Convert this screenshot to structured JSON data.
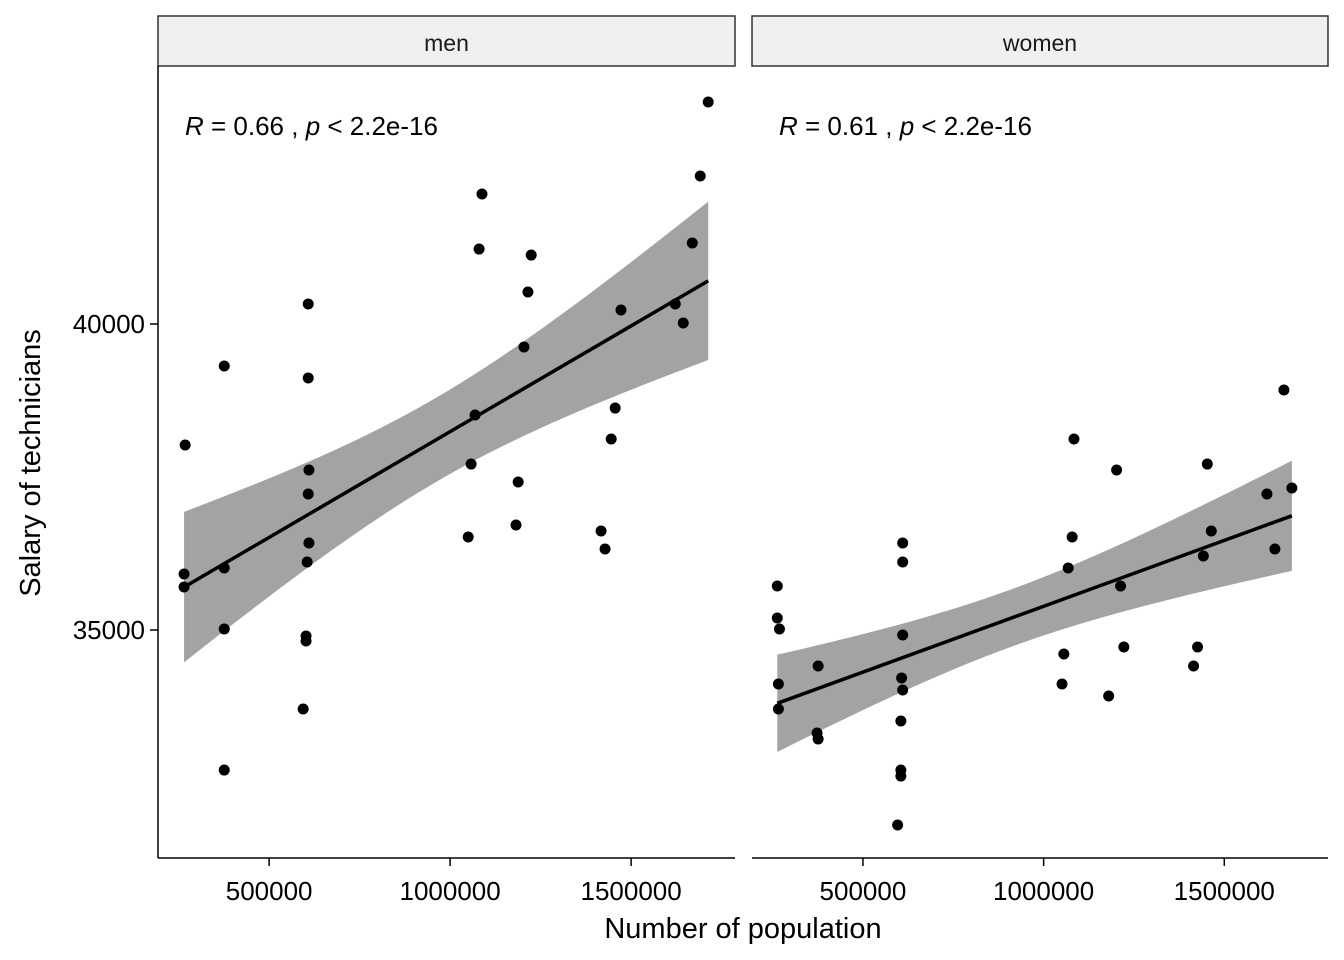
{
  "chart_data": {
    "type": "scatter",
    "xlabel": "Number of population",
    "ylabel": "Salary of technicians",
    "xlim": [
      193000,
      1787000
    ],
    "ylim": [
      31275,
      44216
    ],
    "xticks": [
      500000,
      1000000,
      1500000
    ],
    "xtick_labels": [
      "500000",
      "1000000",
      "1500000"
    ],
    "yticks": [
      35000,
      40000
    ],
    "ytick_labels": [
      "35000",
      "40000"
    ],
    "grid": false,
    "colors": {
      "points": "#000000",
      "line": "#000000",
      "band": "#999999",
      "strip": "#f0f0f0"
    },
    "smooth": "linear regression with confidence band",
    "panels": [
      {
        "strip": "men",
        "annotation": {
          "r_label": "R",
          "r_text": " = 0.66 , ",
          "p_label": "p",
          "p_text": " < 2.2e-16"
        },
        "points": [
          [
            268000,
            38023
          ],
          [
            265000,
            35915
          ],
          [
            265000,
            35703
          ],
          [
            376000,
            39314
          ],
          [
            376000,
            36013
          ],
          [
            376000,
            35016
          ],
          [
            376000,
            32712
          ],
          [
            608000,
            40327
          ],
          [
            608000,
            39118
          ],
          [
            610000,
            37614
          ],
          [
            608000,
            37222
          ],
          [
            610000,
            36422
          ],
          [
            605000,
            36111
          ],
          [
            602000,
            34902
          ],
          [
            602000,
            34820
          ],
          [
            594000,
            33709
          ],
          [
            1088000,
            42124
          ],
          [
            1080000,
            41225
          ],
          [
            1224000,
            41127
          ],
          [
            1215000,
            40523
          ],
          [
            1204000,
            39624
          ],
          [
            1069000,
            38513
          ],
          [
            1058000,
            37712
          ],
          [
            1188000,
            37418
          ],
          [
            1050000,
            36520
          ],
          [
            1182000,
            36716
          ],
          [
            1472000,
            40229
          ],
          [
            1456000,
            38627
          ],
          [
            1445000,
            38121
          ],
          [
            1417000,
            36618
          ],
          [
            1428000,
            36324
          ],
          [
            1713000,
            43627
          ],
          [
            1691000,
            42418
          ],
          [
            1669000,
            41324
          ],
          [
            1622000,
            40327
          ],
          [
            1644000,
            40016
          ]
        ]
      },
      {
        "strip": "women",
        "annotation": {
          "r_label": "R",
          "r_text": " = 0.61 , ",
          "p_label": "p",
          "p_text": " < 2.2e-16"
        },
        "points": [
          [
            263000,
            35719
          ],
          [
            263000,
            35196
          ],
          [
            269000,
            35016
          ],
          [
            266000,
            34118
          ],
          [
            266000,
            33709
          ],
          [
            376000,
            34412
          ],
          [
            373000,
            33317
          ],
          [
            376000,
            33219
          ],
          [
            610000,
            36422
          ],
          [
            610000,
            36111
          ],
          [
            610000,
            34918
          ],
          [
            607000,
            34216
          ],
          [
            610000,
            34020
          ],
          [
            605000,
            33513
          ],
          [
            605000,
            32712
          ],
          [
            605000,
            32614
          ],
          [
            596000,
            31814
          ],
          [
            1084000,
            38121
          ],
          [
            1079000,
            36520
          ],
          [
            1068000,
            36013
          ],
          [
            1056000,
            34608
          ],
          [
            1051000,
            34118
          ],
          [
            1202000,
            37614
          ],
          [
            1213000,
            35719
          ],
          [
            1222000,
            34722
          ],
          [
            1180000,
            33922
          ],
          [
            1453000,
            37712
          ],
          [
            1464000,
            36618
          ],
          [
            1442000,
            36209
          ],
          [
            1426000,
            34722
          ],
          [
            1415000,
            34412
          ],
          [
            1665000,
            38922
          ],
          [
            1618000,
            37222
          ],
          [
            1687000,
            37320
          ],
          [
            1640000,
            36324
          ]
        ]
      }
    ]
  }
}
